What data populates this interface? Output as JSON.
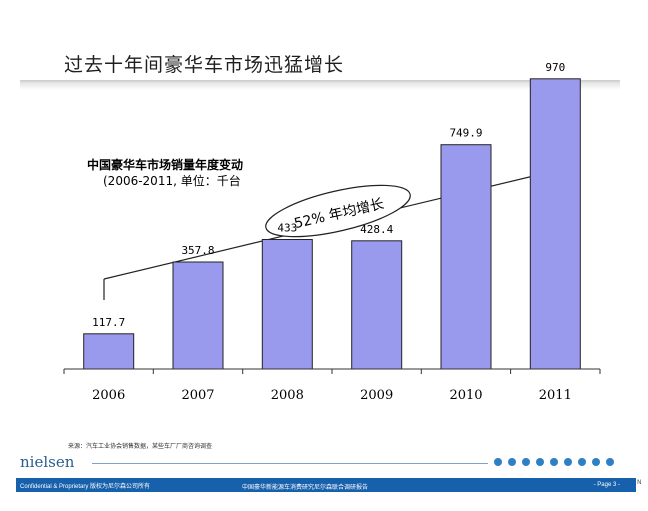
{
  "slide": {
    "title": "过去十年间豪华车市场迅猛增长",
    "source_note": "来源：汽车工业协会销售数据，某些车厂厂商咨询调查",
    "logo": "nielsen",
    "footer": {
      "left": "Confidential & Proprietary  版权为尼尔森公司所有",
      "center": "中国豪华新能源车消费研究尼尔森联合调研报告",
      "right": "- Page 3 -"
    },
    "corner_mark": "N"
  },
  "colors": {
    "bar_fill": "#9999ee",
    "bar_stroke": "#222222",
    "footer_bar": "#1760ab",
    "dot": "#2f7fc4",
    "logo": "#2a5d91"
  },
  "chart_data": {
    "type": "bar",
    "title": "中国豪华车市场销量年度变动",
    "subtitle": "(2006-2011, 单位：千台",
    "categories": [
      "2006",
      "2007",
      "2008",
      "2009",
      "2010",
      "2011"
    ],
    "values": [
      117.7,
      357.8,
      433,
      428.4,
      749.9,
      970
    ],
    "data_labels": [
      "117.7",
      "357.8",
      "433",
      "428.4",
      "749.9",
      "970"
    ],
    "annotation": "52% 年均增长",
    "ylim": [
      0,
      1200
    ],
    "grid": false,
    "legend": "none"
  }
}
